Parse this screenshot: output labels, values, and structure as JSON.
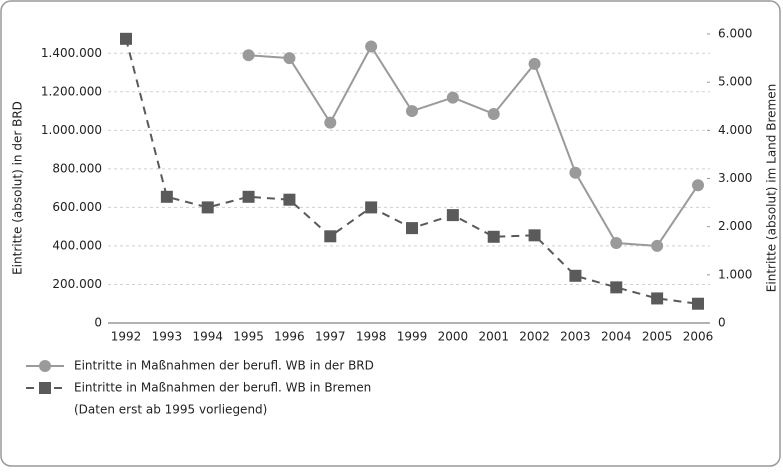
{
  "chart_data": {
    "type": "line",
    "categories": [
      "1992",
      "1993",
      "1994",
      "1995",
      "1996",
      "1997",
      "1998",
      "1999",
      "2000",
      "2001",
      "2002",
      "2003",
      "2004",
      "2005",
      "2006"
    ],
    "ylabel": "Eintritte (absolut) in der BRD",
    "y2label": "Eintritte (absolut) im Land Bremen",
    "ylim": [
      0,
      1500000
    ],
    "yticks": [
      {
        "value": 0,
        "label": "0"
      },
      {
        "value": 200000,
        "label": "200.000"
      },
      {
        "value": 400000,
        "label": "400.000"
      },
      {
        "value": 600000,
        "label": "600.000"
      },
      {
        "value": 800000,
        "label": "800.000"
      },
      {
        "value": 1000000,
        "label": "1.000.000"
      },
      {
        "value": 1200000,
        "label": "1.200.000"
      },
      {
        "value": 1400000,
        "label": "1.400.000"
      }
    ],
    "y2lim": [
      0,
      6000
    ],
    "y2ticks": [
      {
        "value": 0,
        "label": "0"
      },
      {
        "value": 1000,
        "label": "1.000"
      },
      {
        "value": 2000,
        "label": "2.000"
      },
      {
        "value": 3000,
        "label": "3.000"
      },
      {
        "value": 4000,
        "label": "4.000"
      },
      {
        "value": 5000,
        "label": "5.000"
      },
      {
        "value": 6000,
        "label": "6.000"
      }
    ],
    "grid": true,
    "series": [
      {
        "name": "Eintritte in Maßnahmen der berufl. WB in der BRD",
        "color": "#9a9a9a",
        "marker": "circle",
        "dash": false,
        "values": [
          null,
          null,
          null,
          1390000,
          1375000,
          1040000,
          1435000,
          1100000,
          1170000,
          1085000,
          1345000,
          780000,
          415000,
          400000,
          715000
        ]
      },
      {
        "name": "Eintritte in Maßnahmen der berufl. WB in Bremen",
        "note": "(Daten erst ab 1995 vorliegend)",
        "color": "#5a5a5a",
        "marker": "square",
        "dash": true,
        "axis": "y2",
        "values": [
          5900,
          2620,
          2400,
          2620,
          2560,
          1800,
          2400,
          1970,
          2240,
          1790,
          1820,
          980,
          740,
          510,
          400
        ]
      }
    ]
  }
}
